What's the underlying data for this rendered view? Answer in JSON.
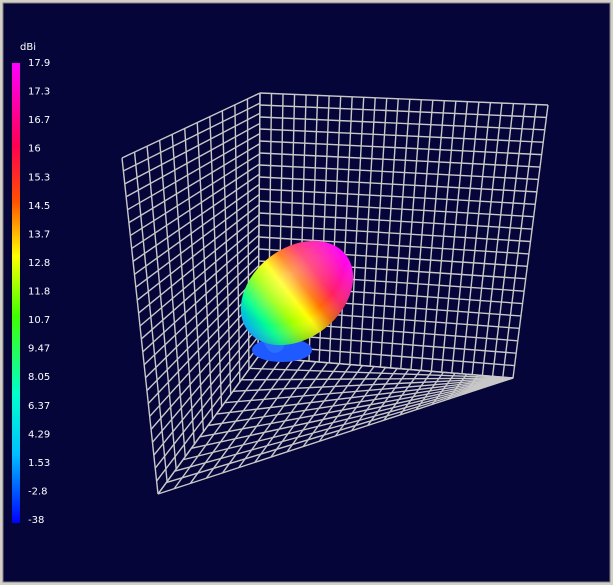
{
  "colorbar": {
    "unit": "dBi",
    "labels": [
      "17.9",
      "17.3",
      "16.7",
      "16",
      "15.3",
      "14.5",
      "13.7",
      "12.8",
      "11.8",
      "10.7",
      "9.47",
      "8.05",
      "6.37",
      "4.29",
      "1.53",
      "-2.8",
      "-38"
    ]
  }
}
